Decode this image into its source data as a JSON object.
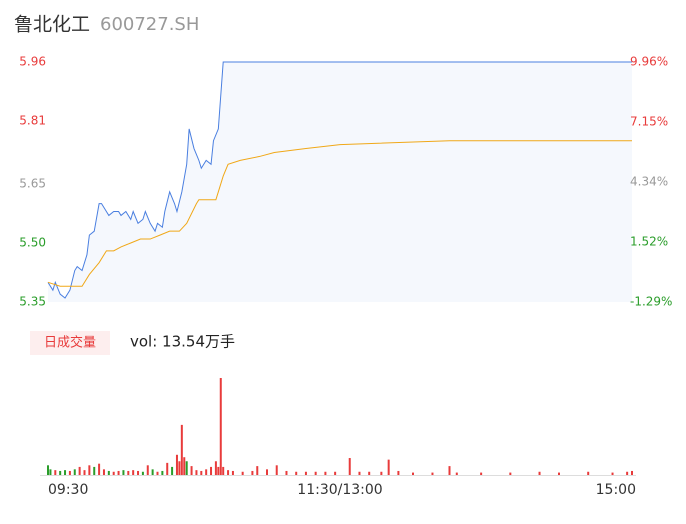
{
  "header": {
    "name": "鲁北化工",
    "code": "600727.SH"
  },
  "chart_data": [
    {
      "type": "line",
      "xlim": [
        0,
        240
      ],
      "ylim": [
        5.35,
        5.96
      ],
      "yticks": [
        5.96,
        5.81,
        5.65,
        {
          "value": 5.5,
          "label": "5.50"
        },
        5.35
      ],
      "ytick_colors": [
        "#e83b3b",
        "#e83b3b",
        "#999999",
        "#2a9d2a",
        "#2a9d2a"
      ],
      "y2lim": [
        -1.29,
        9.96
      ],
      "y2ticks": [
        {
          "value": 9.96,
          "label": "9.96%"
        },
        {
          "value": 7.15,
          "label": "7.15%"
        },
        {
          "value": 4.34,
          "label": "4.34%"
        },
        {
          "value": 1.52,
          "label": "1.52%"
        },
        {
          "value": -1.29,
          "label": "-1.29%"
        }
      ],
      "y2tick_colors": [
        "#e83b3b",
        "#e83b3b",
        "#999999",
        "#2a9d2a",
        "#2a9d2a"
      ],
      "area_color": "#f5f8fd",
      "series": [
        {
          "color": "#4a7fe0",
          "x": [
            0,
            2,
            3,
            5,
            7,
            9,
            11,
            12,
            14,
            16,
            17,
            19,
            21,
            22,
            24,
            25,
            27,
            29,
            30,
            32,
            34,
            35,
            37,
            39,
            40,
            42,
            44,
            45,
            47,
            48,
            50,
            52,
            53,
            55,
            57,
            58,
            60,
            62,
            63,
            65,
            67,
            68,
            70,
            72,
            240
          ],
          "values": [
            5.4,
            5.38,
            5.4,
            5.37,
            5.36,
            5.38,
            5.43,
            5.44,
            5.43,
            5.47,
            5.52,
            5.53,
            5.6,
            5.6,
            5.58,
            5.57,
            5.58,
            5.58,
            5.57,
            5.58,
            5.56,
            5.58,
            5.55,
            5.56,
            5.58,
            5.55,
            5.53,
            5.55,
            5.54,
            5.58,
            5.63,
            5.6,
            5.58,
            5.63,
            5.7,
            5.79,
            5.74,
            5.71,
            5.69,
            5.71,
            5.7,
            5.76,
            5.79,
            5.96,
            5.96
          ]
        },
        {
          "color": "#f0a818",
          "x": [
            0,
            5,
            9,
            14,
            17,
            21,
            24,
            27,
            30,
            34,
            38,
            42,
            46,
            50,
            54,
            57,
            61,
            62,
            69,
            72,
            74,
            79,
            87,
            93,
            106,
            120,
            165,
            240
          ],
          "values": [
            5.4,
            5.39,
            5.39,
            5.39,
            5.42,
            5.45,
            5.48,
            5.48,
            5.49,
            5.5,
            5.51,
            5.51,
            5.52,
            5.53,
            5.53,
            5.55,
            5.6,
            5.61,
            5.61,
            5.67,
            5.7,
            5.71,
            5.72,
            5.73,
            5.74,
            5.75,
            5.76,
            5.76
          ]
        }
      ]
    },
    {
      "type": "bar",
      "title": "日成交量",
      "annotation": "vol: 13.54万手",
      "xlim": [
        0,
        240
      ],
      "xticks": [
        {
          "value": 0,
          "label": "09:30"
        },
        {
          "value": 120,
          "label": "11:30/13:00"
        },
        {
          "value": 240,
          "label": "15:00"
        }
      ],
      "ylim": [
        0,
        1.2
      ],
      "x": [
        0,
        1,
        3,
        5,
        7,
        9,
        11,
        13,
        15,
        17,
        19,
        21,
        23,
        25,
        27,
        29,
        31,
        33,
        35,
        37,
        39,
        41,
        43,
        45,
        47,
        49,
        51,
        53,
        54,
        55,
        56,
        57,
        59,
        61,
        63,
        65,
        67,
        69,
        70,
        71,
        72,
        74,
        76,
        80,
        84,
        86,
        90,
        94,
        98,
        102,
        106,
        110,
        114,
        118,
        124,
        128,
        132,
        137,
        140,
        144,
        150,
        158,
        165,
        168,
        178,
        190,
        202,
        210,
        222,
        232,
        238,
        240
      ],
      "values": [
        0.12,
        0.07,
        0.06,
        0.05,
        0.06,
        0.05,
        0.07,
        0.1,
        0.06,
        0.12,
        0.1,
        0.14,
        0.07,
        0.05,
        0.04,
        0.05,
        0.06,
        0.05,
        0.06,
        0.05,
        0.04,
        0.12,
        0.07,
        0.04,
        0.05,
        0.15,
        0.1,
        0.25,
        0.17,
        0.62,
        0.22,
        0.17,
        0.11,
        0.06,
        0.05,
        0.07,
        0.1,
        0.17,
        0.1,
        1.2,
        0.1,
        0.06,
        0.05,
        0.04,
        0.05,
        0.11,
        0.07,
        0.12,
        0.05,
        0.04,
        0.04,
        0.04,
        0.04,
        0.04,
        0.21,
        0.04,
        0.04,
        0.04,
        0.19,
        0.05,
        0.03,
        0.03,
        0.11,
        0.03,
        0.03,
        0.03,
        0.04,
        0.03,
        0.04,
        0.03,
        0.04,
        0.05
      ],
      "colors": [
        "#2a9d2a",
        "#2a9d2a",
        "#e83b3b",
        "#2a9d2a",
        "#2a9d2a",
        "#e83b3b",
        "#2a9d2a",
        "#e83b3b",
        "#e83b3b",
        "#e83b3b",
        "#2a9d2a",
        "#e83b3b",
        "#e83b3b",
        "#2a9d2a",
        "#e83b3b",
        "#e83b3b",
        "#2a9d2a",
        "#e83b3b",
        "#e83b3b",
        "#e83b3b",
        "#2a9d2a",
        "#e83b3b",
        "#2a9d2a",
        "#e83b3b",
        "#2a9d2a",
        "#e83b3b",
        "#2a9d2a",
        "#e83b3b",
        "#e83b3b",
        "#e83b3b",
        "#e83b3b",
        "#2a9d2a",
        "#e83b3b",
        "#e83b3b",
        "#e83b3b",
        "#e83b3b",
        "#e83b3b",
        "#e83b3b",
        "#e83b3b",
        "#e83b3b",
        "#e83b3b",
        "#e83b3b",
        "#e83b3b",
        "#e83b3b",
        "#e83b3b",
        "#e83b3b",
        "#e83b3b",
        "#e83b3b",
        "#e83b3b",
        "#e83b3b",
        "#e83b3b",
        "#e83b3b",
        "#e83b3b",
        "#e83b3b",
        "#e83b3b",
        "#e83b3b",
        "#e83b3b",
        "#e83b3b",
        "#e83b3b",
        "#e83b3b",
        "#e83b3b",
        "#e83b3b",
        "#e83b3b",
        "#e83b3b",
        "#e83b3b",
        "#e83b3b",
        "#e83b3b",
        "#e83b3b",
        "#e83b3b",
        "#e83b3b",
        "#e83b3b",
        "#e83b3b"
      ]
    }
  ]
}
